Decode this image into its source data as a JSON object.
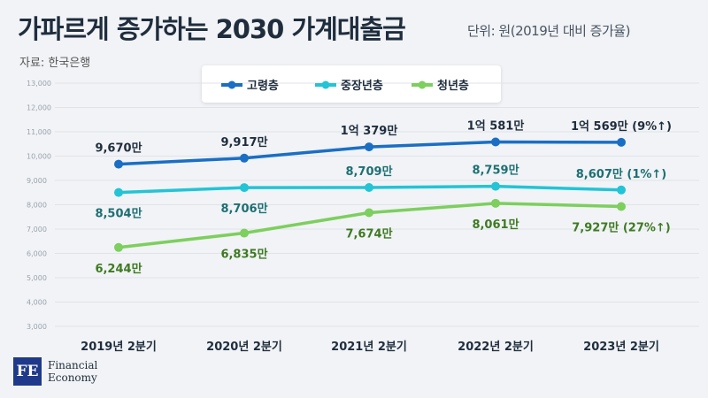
{
  "header": {
    "title": "가파르게 증가하는 2030 가계대출금",
    "unit": "단위: 원(2019년 대비 증가율)",
    "source": "자료: 한국은행"
  },
  "brand": {
    "logo_text": "FE",
    "line1": "Financial",
    "line2": "Economy"
  },
  "chart_data": {
    "type": "line",
    "categories": [
      "2019년 2분기",
      "2020년 2분기",
      "2021년 2분기",
      "2022년 2분기",
      "2023년 2분기"
    ],
    "ylim": [
      3000,
      13000
    ],
    "yticks": [
      3000,
      4000,
      5000,
      6000,
      7000,
      8000,
      9000,
      10000,
      11000,
      12000,
      13000
    ],
    "ytick_labels": [
      "3,000",
      "4,000",
      "5,000",
      "6,000",
      "7,000",
      "8,000",
      "9,000",
      "10,000",
      "11,000",
      "12,000",
      "13,000"
    ],
    "grid": true,
    "legend": "top",
    "series": [
      {
        "name": "고령층",
        "color": "#1a6fc4",
        "label_color": "#1f2d3d",
        "label_pos": "above",
        "values": [
          9670,
          9917,
          10379,
          10581,
          10569
        ],
        "labels": [
          "9,670만",
          "9,917만",
          "1억 379만",
          "1억 581만",
          "1억 569만 (9%↑)"
        ]
      },
      {
        "name": "중장년층",
        "color": "#22c4d6",
        "label_color": "#1d6f73",
        "label_pos": "mixed",
        "values": [
          8504,
          8706,
          8709,
          8759,
          8607
        ],
        "labels": [
          "8,504만",
          "8,706만",
          "8,709만",
          "8,759만",
          "8,607만 (1%↑)"
        ]
      },
      {
        "name": "청년층",
        "color": "#7dcf5e",
        "label_color": "#3e7a22",
        "label_pos": "below",
        "values": [
          6244,
          6835,
          7674,
          8061,
          7927
        ],
        "labels": [
          "6,244만",
          "6,835만",
          "7,674만",
          "8,061만",
          "7,927만 (27%↑)"
        ]
      }
    ]
  }
}
